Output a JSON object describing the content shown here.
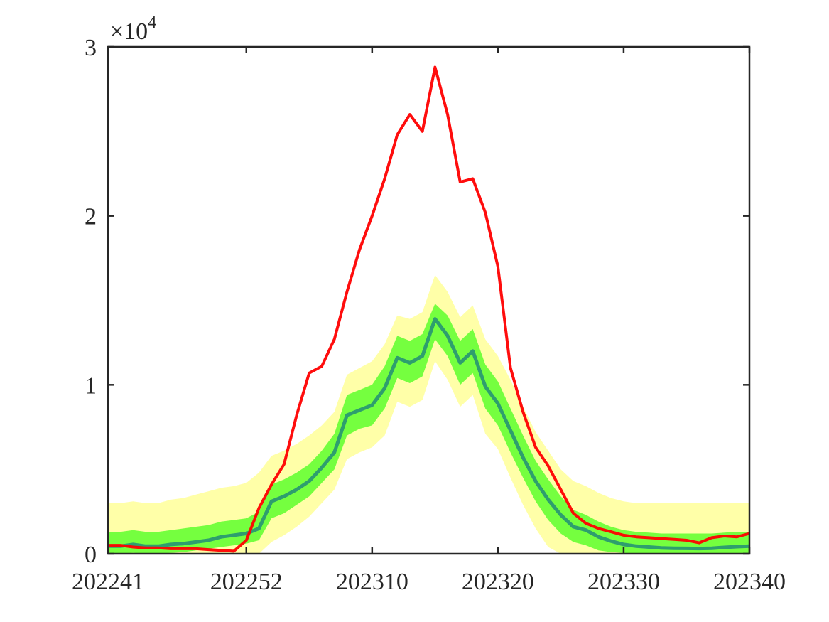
{
  "chart_data": {
    "type": "line",
    "xlim": [
      202241,
      202340
    ],
    "ylim": [
      0,
      30000
    ],
    "grid": false,
    "x_tick_labels": [
      "202241",
      "202252",
      "202310",
      "202320",
      "202330",
      "202340"
    ],
    "y_tick_labels": [
      "0",
      "1",
      "2",
      "3"
    ],
    "y_exponent_base": "×10",
    "y_exponent_power": "4",
    "weeks": [
      "202241",
      "202242",
      "202243",
      "202244",
      "202245",
      "202246",
      "202247",
      "202248",
      "202249",
      "202250",
      "202251",
      "202252",
      "202301",
      "202302",
      "202303",
      "202304",
      "202305",
      "202306",
      "202307",
      "202308",
      "202309",
      "202310",
      "202311",
      "202312",
      "202313",
      "202314",
      "202315",
      "202316",
      "202317",
      "202318",
      "202319",
      "202320",
      "202321",
      "202322",
      "202323",
      "202324",
      "202325",
      "202326",
      "202327",
      "202328",
      "202329",
      "202330",
      "202331",
      "202332",
      "202333",
      "202334",
      "202335",
      "202336",
      "202337",
      "202338",
      "202339",
      "202340"
    ],
    "series": [
      {
        "role": "observed",
        "color": "#ff0000",
        "values": [
          500,
          500,
          400,
          350,
          350,
          300,
          300,
          300,
          250,
          200,
          150,
          800,
          2700,
          4100,
          5300,
          8200,
          10700,
          11100,
          12700,
          15500,
          18000,
          20000,
          22200,
          24800,
          26000,
          25000,
          28800,
          26000,
          22000,
          22200,
          20200,
          17000,
          11000,
          8400,
          6300,
          5200,
          3800,
          2400,
          1800,
          1500,
          1300,
          1100,
          1000,
          950,
          900,
          850,
          800,
          650,
          950,
          1050,
          1000,
          1200
        ]
      },
      {
        "role": "predicted",
        "color": "#2e9e6e",
        "values": [
          450,
          450,
          550,
          450,
          450,
          550,
          600,
          700,
          800,
          1000,
          1100,
          1200,
          1500,
          3100,
          3400,
          3800,
          4300,
          5100,
          6000,
          8200,
          8500,
          8800,
          9800,
          11600,
          11300,
          11700,
          13900,
          12900,
          11300,
          12000,
          9900,
          8900,
          7300,
          5700,
          4300,
          3200,
          2300,
          1600,
          1400,
          1000,
          750,
          550,
          450,
          400,
          350,
          330,
          320,
          310,
          330,
          380,
          420,
          450
        ]
      },
      {
        "role": "inner-band",
        "color": "#66ff33",
        "lower": [
          0,
          0,
          50,
          0,
          0,
          50,
          100,
          200,
          300,
          400,
          500,
          600,
          800,
          2100,
          2400,
          2900,
          3400,
          4200,
          5000,
          7000,
          7400,
          7600,
          8600,
          10400,
          10100,
          10500,
          12700,
          11700,
          10000,
          10700,
          8600,
          7600,
          6000,
          4500,
          3100,
          2000,
          1200,
          700,
          500,
          200,
          100,
          50,
          0,
          0,
          0,
          0,
          0,
          0,
          0,
          0,
          0,
          0
        ],
        "upper": [
          1300,
          1300,
          1400,
          1300,
          1300,
          1400,
          1500,
          1600,
          1700,
          1900,
          2000,
          2100,
          2500,
          4100,
          4400,
          4800,
          5300,
          6100,
          7100,
          9400,
          9700,
          10000,
          11100,
          12900,
          12600,
          13000,
          14800,
          14100,
          12600,
          13300,
          11200,
          10200,
          8600,
          7000,
          5500,
          4400,
          3400,
          2600,
          2300,
          1900,
          1600,
          1400,
          1300,
          1250,
          1200,
          1200,
          1200,
          1200,
          1200,
          1250,
          1300,
          1300
        ]
      },
      {
        "role": "outer-band",
        "color": "#ffff99",
        "lower": [
          0,
          0,
          0,
          0,
          0,
          0,
          0,
          0,
          0,
          0,
          0,
          0,
          0,
          700,
          1100,
          1600,
          2200,
          3000,
          3800,
          5600,
          6000,
          6300,
          7000,
          9000,
          8700,
          9100,
          11400,
          10300,
          8700,
          9400,
          7100,
          6200,
          4500,
          2900,
          1500,
          400,
          0,
          0,
          0,
          0,
          0,
          0,
          0,
          0,
          0,
          0,
          0,
          0,
          0,
          0,
          0,
          0
        ],
        "upper": [
          3000,
          3000,
          3100,
          3000,
          3000,
          3200,
          3300,
          3500,
          3700,
          3900,
          4000,
          4200,
          4800,
          5800,
          6100,
          6500,
          7000,
          7600,
          8400,
          10600,
          11000,
          11400,
          12400,
          14100,
          13900,
          14300,
          16500,
          15500,
          14000,
          14700,
          12700,
          11700,
          10300,
          8700,
          7200,
          6100,
          5000,
          4300,
          4000,
          3600,
          3300,
          3100,
          3000,
          3000,
          3000,
          3000,
          3000,
          3000,
          3000,
          3000,
          3000,
          3000
        ]
      }
    ]
  }
}
